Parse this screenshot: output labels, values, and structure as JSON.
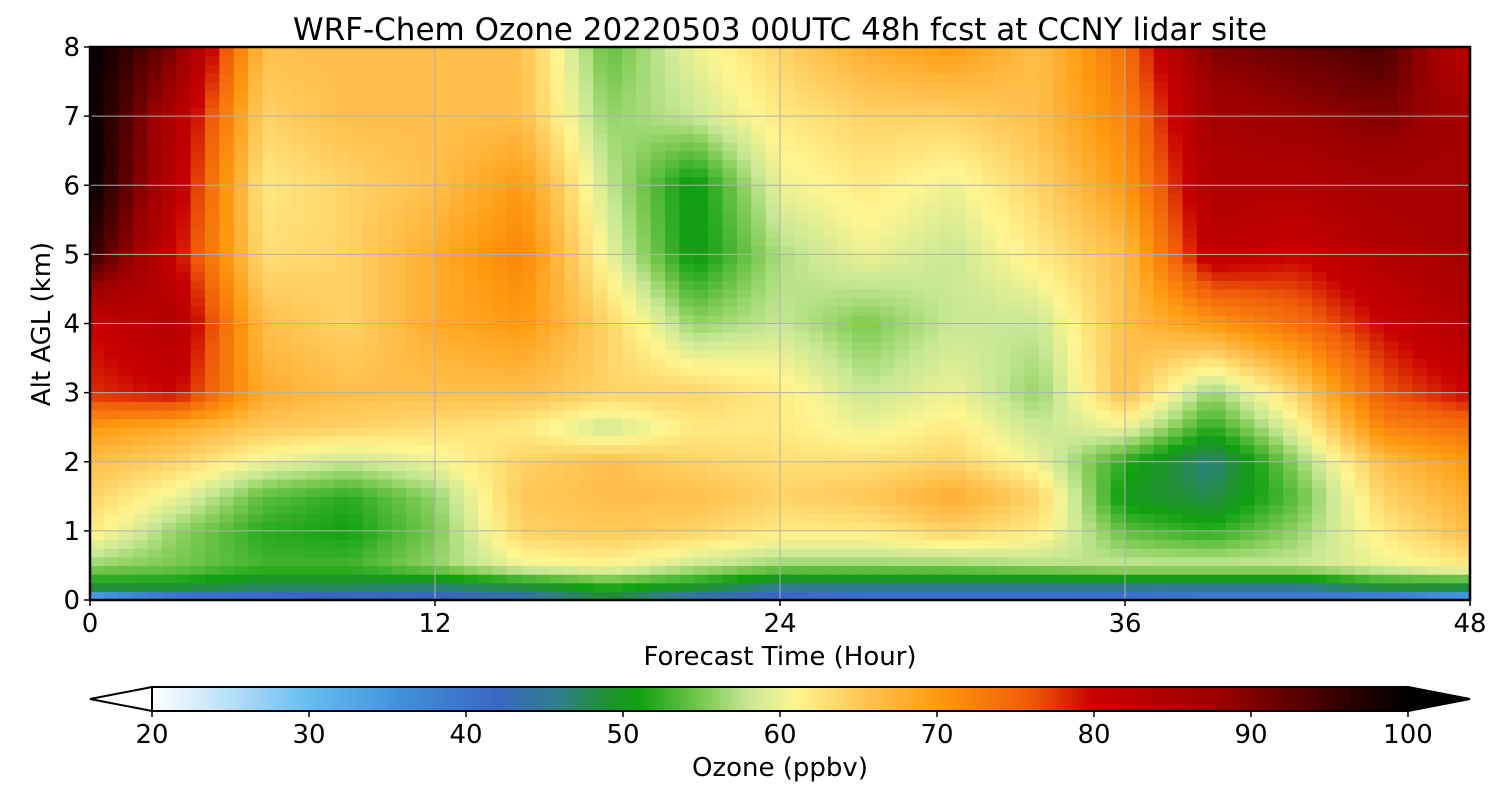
{
  "chart_data": {
    "type": "heatmap",
    "title": "WRF-Chem Ozone  20220503 00UTC 48h fcst at CCNY lidar site",
    "xlabel": "Forecast Time (Hour)",
    "ylabel": "Alt AGL (km)",
    "xlim": [
      0,
      48
    ],
    "ylim": [
      0,
      8
    ],
    "x_ticks": [
      0,
      12,
      24,
      36,
      48
    ],
    "y_ticks": [
      0,
      1,
      2,
      3,
      4,
      5,
      6,
      7,
      8
    ],
    "grid": true,
    "x": [
      0,
      3,
      6,
      9,
      12,
      15,
      18,
      21,
      24,
      27,
      30,
      33,
      36,
      39,
      42,
      45,
      48
    ],
    "y": [
      0,
      0.2,
      0.5,
      1,
      1.5,
      2,
      2.5,
      3,
      4,
      5,
      6,
      7,
      8
    ],
    "z": [
      [
        27,
        35,
        38,
        40,
        40,
        42,
        48,
        42,
        40,
        38,
        38,
        38,
        38,
        36,
        36,
        33,
        28
      ],
      [
        50,
        50,
        48,
        48,
        47,
        49,
        52,
        50,
        46,
        46,
        46,
        46,
        46,
        46,
        46,
        50,
        50
      ],
      [
        56,
        55,
        53,
        53,
        56,
        60,
        61,
        58,
        56,
        56,
        56,
        57,
        58,
        58,
        58,
        60,
        62
      ],
      [
        62,
        56,
        52,
        51,
        55,
        64,
        65,
        64,
        62,
        62,
        64,
        62,
        54,
        52,
        56,
        62,
        66
      ],
      [
        64,
        60,
        54,
        52,
        56,
        65,
        66,
        66,
        64,
        65,
        68,
        64,
        50,
        48,
        54,
        64,
        68
      ],
      [
        66,
        64,
        60,
        58,
        60,
        64,
        66,
        64,
        63,
        63,
        64,
        60,
        52,
        46,
        56,
        66,
        70
      ],
      [
        70,
        68,
        65,
        64,
        63,
        62,
        58,
        62,
        62,
        60,
        62,
        58,
        60,
        52,
        60,
        72,
        74
      ],
      [
        78,
        80,
        68,
        66,
        66,
        66,
        64,
        64,
        62,
        58,
        60,
        56,
        66,
        56,
        64,
        76,
        80
      ],
      [
        80,
        84,
        66,
        64,
        68,
        70,
        64,
        56,
        58,
        55,
        58,
        58,
        66,
        70,
        74,
        80,
        84
      ],
      [
        96,
        80,
        63,
        64,
        68,
        72,
        60,
        50,
        57,
        60,
        58,
        62,
        66,
        82,
        80,
        84,
        86
      ],
      [
        100,
        82,
        62,
        64,
        66,
        70,
        58,
        50,
        60,
        62,
        60,
        64,
        70,
        84,
        84,
        86,
        86
      ],
      [
        100,
        84,
        64,
        66,
        66,
        66,
        56,
        58,
        62,
        64,
        64,
        66,
        72,
        86,
        88,
        90,
        86
      ],
      [
        100,
        90,
        66,
        66,
        66,
        66,
        54,
        60,
        64,
        68,
        70,
        66,
        74,
        90,
        92,
        94,
        82
      ]
    ],
    "colorbar": {
      "label": "Ozone  (ppbv)",
      "min": 20,
      "max": 100,
      "ticks": [
        20,
        30,
        40,
        50,
        60,
        70,
        80,
        90,
        100
      ],
      "extend": "both",
      "stops": [
        [
          20,
          "#ffffff"
        ],
        [
          26,
          "#a8d8f5"
        ],
        [
          30,
          "#66bdf0"
        ],
        [
          36,
          "#3f8fd8"
        ],
        [
          42,
          "#3a66c0"
        ],
        [
          46,
          "#2f7f88"
        ],
        [
          49,
          "#1f9030"
        ],
        [
          51,
          "#10a010"
        ],
        [
          55,
          "#78c850"
        ],
        [
          58,
          "#c8e896"
        ],
        [
          61,
          "#fff590"
        ],
        [
          65,
          "#ffc858"
        ],
        [
          70,
          "#ff9a10"
        ],
        [
          76,
          "#ee5a08"
        ],
        [
          80,
          "#c80000"
        ],
        [
          88,
          "#9a0000"
        ],
        [
          96,
          "#300000"
        ],
        [
          100,
          "#000000"
        ]
      ]
    }
  }
}
